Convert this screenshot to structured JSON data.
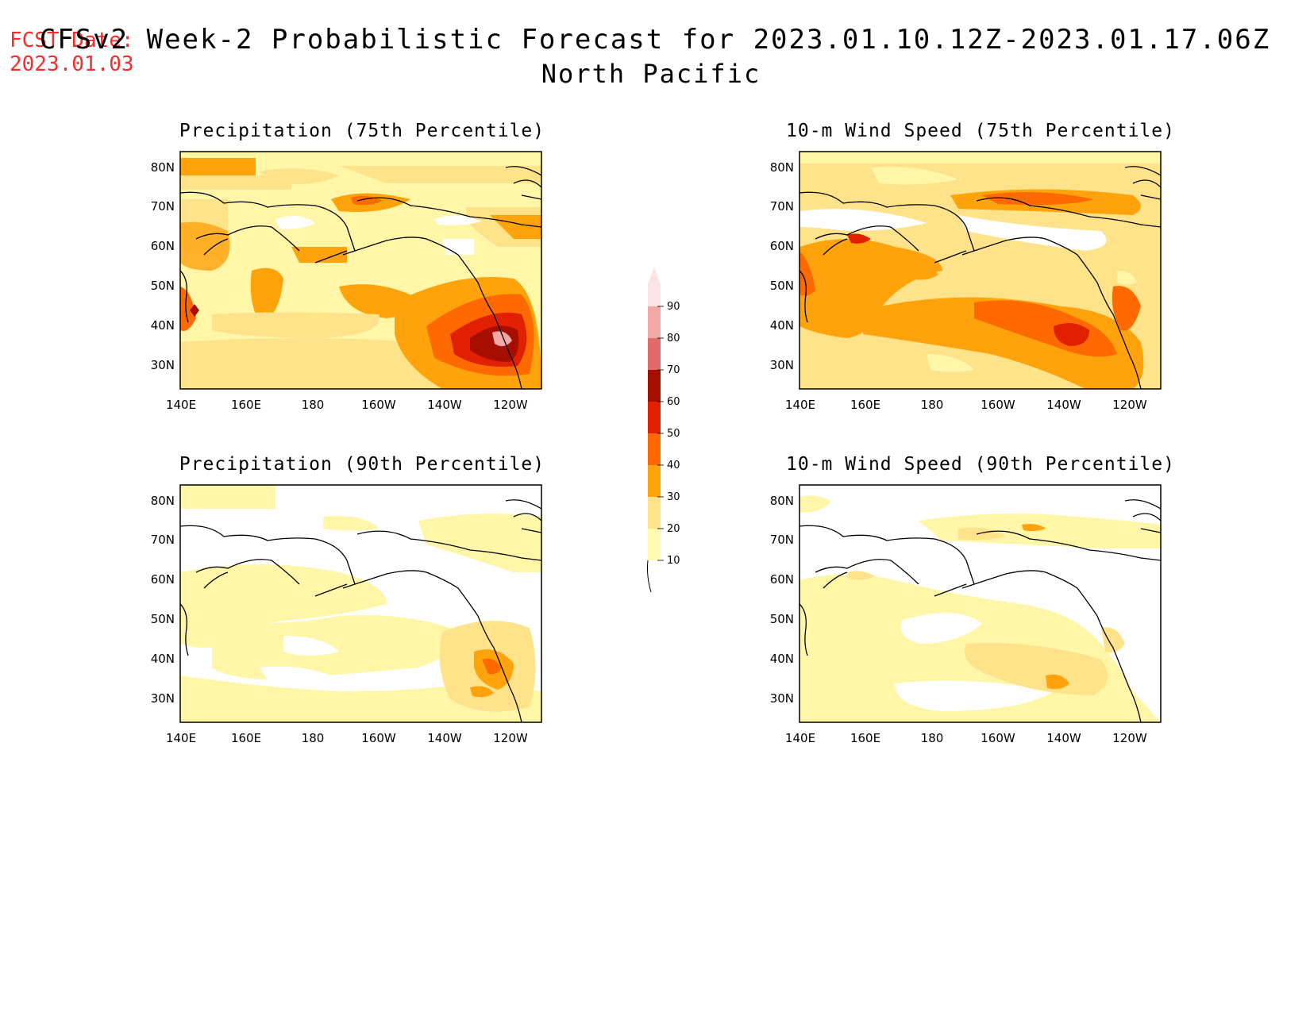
{
  "header": {
    "fcst_label": "FCST Date:",
    "fcst_date": "2023.01.03",
    "title": "CFSv2 Week-2 Probabilistic Forecast for 2023.01.10.12Z-2023.01.17.06Z",
    "region": "North Pacific"
  },
  "panels": [
    {
      "id": "precip75",
      "title": "Precipitation (75th Percentile)"
    },
    {
      "id": "wind75",
      "title": "10-m Wind Speed (75th Percentile)"
    },
    {
      "id": "precip90",
      "title": "Precipitation (90th Percentile)"
    },
    {
      "id": "wind90",
      "title": "10-m Wind Speed (90th Percentile)"
    }
  ],
  "axes": {
    "lon_ticks": [
      "140E",
      "160E",
      "180",
      "160W",
      "140W",
      "120W"
    ],
    "lat_ticks": [
      "80N",
      "70N",
      "60N",
      "50N",
      "40N",
      "30N"
    ]
  },
  "colorbar": {
    "levels": [
      "10",
      "20",
      "30",
      "40",
      "50",
      "60",
      "70",
      "80",
      "90"
    ],
    "colors": [
      "#fffbb0",
      "#ffe38a",
      "#ffa30c",
      "#ff6a00",
      "#e02000",
      "#a60e00",
      "#e16a6a",
      "#f3a8a8",
      "#fde4e4"
    ]
  }
}
